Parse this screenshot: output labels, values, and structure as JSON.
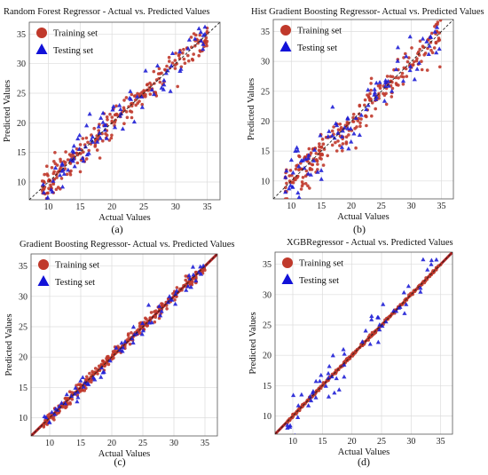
{
  "chart_data": [
    {
      "type": "scatter",
      "title": "Random Forest Regressor - Actual vs. Predicted Values",
      "xlabel": "Actual Values",
      "ylabel": "Predicted Values",
      "sublabel": "(a)",
      "xlim": [
        7,
        37
      ],
      "ylim": [
        7,
        37
      ],
      "xticks": [
        "10",
        "15",
        "20",
        "25",
        "30",
        "35"
      ],
      "yticks": [
        "10",
        "15",
        "20",
        "25",
        "30",
        "35"
      ],
      "grid": true,
      "legend_position": "top-left",
      "legend": [
        "Training set",
        "Testing set"
      ],
      "reference_line": "y = x (dashed)",
      "spread": 1.2,
      "series": [
        {
          "name": "Training set",
          "marker": "circle",
          "color": "#c0392b",
          "count": 260
        },
        {
          "name": "Testing set",
          "marker": "triangle",
          "color": "#1f1fd6",
          "count": 90
        }
      ]
    },
    {
      "type": "scatter",
      "title": "Hist Gradient Boosting Regressor- Actual vs. Predicted Values",
      "xlabel": "Actual Values",
      "ylabel": "Predicted Values",
      "sublabel": "(b)",
      "xlim": [
        7,
        37
      ],
      "ylim": [
        7,
        37
      ],
      "xticks": [
        "10",
        "15",
        "20",
        "25",
        "30",
        "35"
      ],
      "yticks": [
        "10",
        "15",
        "20",
        "25",
        "30",
        "35"
      ],
      "grid": true,
      "legend_position": "top-left",
      "legend": [
        "Training set",
        "Testing set"
      ],
      "reference_line": "y = x (dashed)",
      "spread": 1.6,
      "series": [
        {
          "name": "Training set",
          "marker": "circle",
          "color": "#c0392b",
          "count": 260
        },
        {
          "name": "Testing set",
          "marker": "triangle",
          "color": "#1f1fd6",
          "count": 90
        }
      ]
    },
    {
      "type": "scatter",
      "title": "Gradient Boosting Regressor- Actual vs. Predicted Values",
      "xlabel": "Actual Values",
      "ylabel": "Predicted Values",
      "sublabel": "(c)",
      "xlim": [
        7,
        37
      ],
      "ylim": [
        7,
        37
      ],
      "xticks": [
        "10",
        "15",
        "20",
        "25",
        "30",
        "35"
      ],
      "yticks": [
        "10",
        "15",
        "20",
        "25",
        "30",
        "35"
      ],
      "grid": true,
      "legend_position": "top-left",
      "legend": [
        "Training set",
        "Testing set"
      ],
      "reference_line": "y = x (dashed)",
      "spread": 0.55,
      "series": [
        {
          "name": "Training set",
          "marker": "circle",
          "color": "#c0392b",
          "count": 260
        },
        {
          "name": "Testing set",
          "marker": "triangle",
          "color": "#1f1fd6",
          "count": 70
        }
      ]
    },
    {
      "type": "scatter",
      "title": "XGBRegressor - Actual vs. Predicted Values",
      "xlabel": "Actual Values",
      "ylabel": "Predicted Values",
      "sublabel": "(d)",
      "xlim": [
        7,
        37
      ],
      "ylim": [
        7,
        37
      ],
      "xticks": [
        "10",
        "15",
        "20",
        "25",
        "30",
        "35"
      ],
      "yticks": [
        "10",
        "15",
        "20",
        "25",
        "30",
        "35"
      ],
      "grid": true,
      "legend_position": "top-left",
      "legend": [
        "Training set",
        "Testing set"
      ],
      "reference_line": "y = x (dashed)",
      "spread": 1.1,
      "train_on_line": true,
      "series": [
        {
          "name": "Training set",
          "marker": "circle",
          "color": "#c0392b",
          "count": 260
        },
        {
          "name": "Testing set",
          "marker": "triangle",
          "color": "#1f1fd6",
          "count": 60
        }
      ]
    }
  ]
}
